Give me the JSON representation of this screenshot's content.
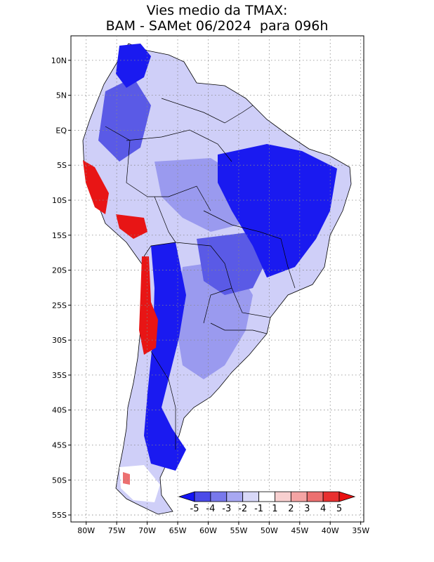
{
  "title": {
    "line1": "Vies medio da TMAX:",
    "line2": "BAM - SAMet 06/2024  para 096h"
  },
  "map": {
    "lat_labels": [
      "10N",
      "5N",
      "EQ",
      "5S",
      "10S",
      "15S",
      "20S",
      "25S",
      "30S",
      "35S",
      "40S",
      "45S",
      "50S",
      "55S"
    ],
    "lat_values": [
      10,
      5,
      0,
      -5,
      -10,
      -15,
      -20,
      -25,
      -30,
      -35,
      -40,
      -45,
      -50,
      -55
    ],
    "lon_labels": [
      "80W",
      "75W",
      "70W",
      "65W",
      "60W",
      "55W",
      "50W",
      "45W",
      "40W",
      "35W"
    ],
    "lon_values": [
      -80,
      -75,
      -70,
      -65,
      -60,
      -55,
      -50,
      -45,
      -40,
      -35
    ],
    "lat_range": [
      -56,
      13.5
    ],
    "lon_range": [
      -82.5,
      -34.5
    ]
  },
  "colorbar": {
    "labels": [
      "-5",
      "-4",
      "-3",
      "-2",
      "-1",
      "1",
      "2",
      "3",
      "4",
      "5"
    ],
    "colors": [
      "#1515f5",
      "#4a4ae8",
      "#7878ec",
      "#a8a8f2",
      "#d8d8f8",
      "#ffffff",
      "#f8d0d0",
      "#f4a4a4",
      "#ec7070",
      "#e83030",
      "#e81010"
    ]
  },
  "colors": {
    "strong_blue": "#1a1af0",
    "medium_blue": "#5a5ae6",
    "light_blue": "#9a9aef",
    "pale_blue": "#cfcff8",
    "red": "#e81515"
  }
}
